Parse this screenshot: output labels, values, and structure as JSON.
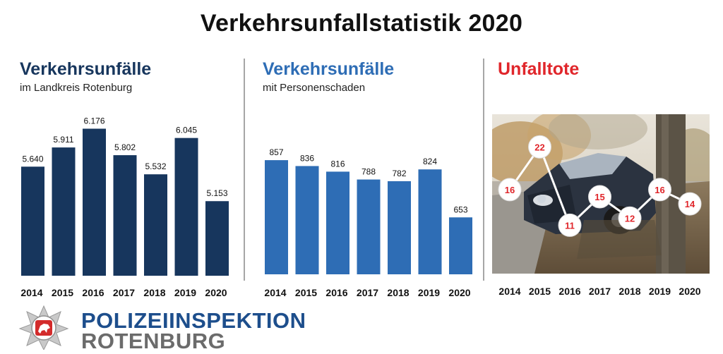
{
  "title": "Verkehrsunfallstatistik 2020",
  "panels": [
    {
      "title": "Verkehrsunfälle",
      "subtitle": "im Landkreis Rotenburg",
      "title_color": "#17365d"
    },
    {
      "title": "Verkehrsunfälle",
      "subtitle": "mit Personenschaden",
      "title_color": "#2e6db5"
    },
    {
      "title": "Unfalltote",
      "subtitle": "",
      "title_color": "#e0262b"
    }
  ],
  "logo": {
    "line1": "POLIZEIINSPEKTION",
    "line2": "ROTENBURG"
  },
  "chart_data": [
    {
      "type": "bar",
      "title": "Verkehrsunfälle",
      "subtitle": "im Landkreis Rotenburg",
      "categories": [
        "2014",
        "2015",
        "2016",
        "2017",
        "2018",
        "2019",
        "2020"
      ],
      "values": [
        5640,
        5911,
        6176,
        5802,
        5532,
        6045,
        5153
      ],
      "labels": [
        "5.640",
        "5.911",
        "6.176",
        "5.802",
        "5.532",
        "6.045",
        "5.153"
      ],
      "ylim": [
        4100,
        6400
      ],
      "color": "#17365d"
    },
    {
      "type": "bar",
      "title": "Verkehrsunfälle",
      "subtitle": "mit Personenschaden",
      "categories": [
        "2014",
        "2015",
        "2016",
        "2017",
        "2018",
        "2019",
        "2020"
      ],
      "values": [
        857,
        836,
        816,
        788,
        782,
        824,
        653
      ],
      "labels": [
        "857",
        "836",
        "816",
        "788",
        "782",
        "824",
        "653"
      ],
      "ylim": [
        450,
        900
      ],
      "color": "#2e6db5"
    },
    {
      "type": "line",
      "title": "Unfalltote",
      "categories": [
        "2014",
        "2015",
        "2016",
        "2017",
        "2018",
        "2019",
        "2020"
      ],
      "values": [
        16,
        22,
        11,
        15,
        12,
        16,
        14
      ],
      "labels": [
        "16",
        "22",
        "11",
        "15",
        "12",
        "16",
        "14"
      ],
      "ylim": [
        5,
        25
      ],
      "color": "#ffffff",
      "label_color": "#e0262b"
    }
  ]
}
